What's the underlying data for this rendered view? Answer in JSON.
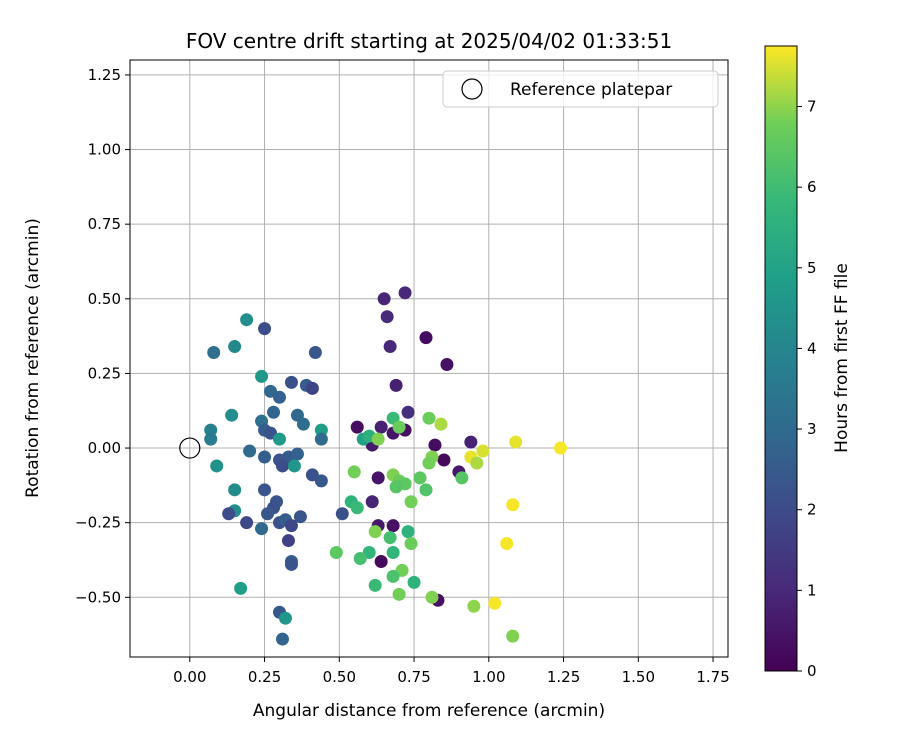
{
  "chart_data": {
    "type": "scatter",
    "title": "FOV centre drift starting at 2025/04/02 01:33:51",
    "xlabel": "Angular distance from reference (arcmin)",
    "ylabel": "Rotation from reference (arcmin)",
    "xlim": [
      -0.2,
      1.8
    ],
    "ylim": [
      -0.7,
      1.3
    ],
    "xticks": [
      0.0,
      0.25,
      0.5,
      0.75,
      1.0,
      1.25,
      1.5,
      1.75
    ],
    "xtick_labels": [
      "0.00",
      "0.25",
      "0.50",
      "0.75",
      "1.00",
      "1.25",
      "1.50",
      "1.75"
    ],
    "yticks": [
      -0.5,
      -0.25,
      0.0,
      0.25,
      0.5,
      0.75,
      1.0,
      1.25
    ],
    "ytick_labels": [
      "−0.50",
      "−0.25",
      "0.00",
      "0.25",
      "0.50",
      "0.75",
      "1.00",
      "1.25"
    ],
    "grid": true,
    "legend": {
      "placement": "upper-right",
      "entries": [
        "Reference platepar"
      ]
    },
    "reference_point": {
      "x": 0.0,
      "y": 0.0,
      "label": "Reference platepar"
    },
    "colorbar": {
      "label": "Hours from first FF file",
      "range": [
        0,
        7.75
      ],
      "ticks": [
        0,
        1,
        2,
        3,
        4,
        5,
        6,
        7
      ],
      "tick_labels": [
        "0",
        "1",
        "2",
        "3",
        "4",
        "5",
        "6",
        "7"
      ],
      "colormap": "viridis"
    },
    "points": [
      {
        "x": 0.65,
        "y": 0.5,
        "c": 0.9
      },
      {
        "x": 0.72,
        "y": 0.52,
        "c": 1.0
      },
      {
        "x": 0.66,
        "y": 0.44,
        "c": 1.1
      },
      {
        "x": 0.67,
        "y": 0.34,
        "c": 1.0
      },
      {
        "x": 0.79,
        "y": 0.37,
        "c": 0.3
      },
      {
        "x": 0.86,
        "y": 0.28,
        "c": 0.4
      },
      {
        "x": 0.69,
        "y": 0.21,
        "c": 0.8
      },
      {
        "x": 0.73,
        "y": 0.12,
        "c": 1.2
      },
      {
        "x": 0.56,
        "y": 0.07,
        "c": 0.3
      },
      {
        "x": 0.64,
        "y": 0.07,
        "c": 0.8
      },
      {
        "x": 0.68,
        "y": 0.05,
        "c": 0.5
      },
      {
        "x": 0.72,
        "y": 0.06,
        "c": 0.4
      },
      {
        "x": 0.61,
        "y": 0.01,
        "c": 0.6
      },
      {
        "x": 0.82,
        "y": 0.01,
        "c": 0.3
      },
      {
        "x": 0.94,
        "y": 0.02,
        "c": 0.8
      },
      {
        "x": 0.85,
        "y": -0.04,
        "c": 0.2
      },
      {
        "x": 0.9,
        "y": -0.08,
        "c": 0.6
      },
      {
        "x": 0.63,
        "y": -0.1,
        "c": 0.5
      },
      {
        "x": 0.61,
        "y": -0.18,
        "c": 0.9
      },
      {
        "x": 0.63,
        "y": -0.26,
        "c": 0.6
      },
      {
        "x": 0.68,
        "y": -0.26,
        "c": 0.4
      },
      {
        "x": 0.64,
        "y": -0.38,
        "c": 0.2
      },
      {
        "x": 0.83,
        "y": -0.51,
        "c": 0.4
      },
      {
        "x": 0.19,
        "y": 0.43,
        "c": 4.3
      },
      {
        "x": 0.25,
        "y": 0.4,
        "c": 2.1
      },
      {
        "x": 0.08,
        "y": 0.32,
        "c": 3.2
      },
      {
        "x": 0.15,
        "y": 0.34,
        "c": 4.1
      },
      {
        "x": 0.42,
        "y": 0.32,
        "c": 2.4
      },
      {
        "x": 0.24,
        "y": 0.24,
        "c": 4.6
      },
      {
        "x": 0.34,
        "y": 0.22,
        "c": 2.2
      },
      {
        "x": 0.39,
        "y": 0.21,
        "c": 2.5
      },
      {
        "x": 0.41,
        "y": 0.2,
        "c": 1.8
      },
      {
        "x": 0.27,
        "y": 0.19,
        "c": 2.9
      },
      {
        "x": 0.3,
        "y": 0.17,
        "c": 2.7
      },
      {
        "x": 0.14,
        "y": 0.11,
        "c": 4.3
      },
      {
        "x": 0.28,
        "y": 0.12,
        "c": 2.8
      },
      {
        "x": 0.36,
        "y": 0.11,
        "c": 2.9
      },
      {
        "x": 0.24,
        "y": 0.09,
        "c": 3.2
      },
      {
        "x": 0.38,
        "y": 0.08,
        "c": 3.1
      },
      {
        "x": 0.07,
        "y": 0.06,
        "c": 3.8
      },
      {
        "x": 0.07,
        "y": 0.03,
        "c": 3.6
      },
      {
        "x": 0.25,
        "y": 0.06,
        "c": 2.6
      },
      {
        "x": 0.27,
        "y": 0.05,
        "c": 2.3
      },
      {
        "x": 0.44,
        "y": 0.06,
        "c": 4.8
      },
      {
        "x": 0.3,
        "y": 0.03,
        "c": 4.7
      },
      {
        "x": 0.44,
        "y": 0.03,
        "c": 3.0
      },
      {
        "x": 0.2,
        "y": -0.01,
        "c": 3.0
      },
      {
        "x": 0.25,
        "y": -0.03,
        "c": 2.6
      },
      {
        "x": 0.33,
        "y": -0.03,
        "c": 2.5
      },
      {
        "x": 0.36,
        "y": -0.02,
        "c": 2.7
      },
      {
        "x": 0.3,
        "y": -0.04,
        "c": 2.3
      },
      {
        "x": 0.31,
        "y": -0.06,
        "c": 2.1
      },
      {
        "x": 0.35,
        "y": -0.06,
        "c": 4.6
      },
      {
        "x": 0.09,
        "y": -0.06,
        "c": 4.4
      },
      {
        "x": 0.41,
        "y": -0.09,
        "c": 2.2
      },
      {
        "x": 0.44,
        "y": -0.11,
        "c": 2.4
      },
      {
        "x": 0.15,
        "y": -0.14,
        "c": 4.2
      },
      {
        "x": 0.25,
        "y": -0.14,
        "c": 2.3
      },
      {
        "x": 0.29,
        "y": -0.18,
        "c": 2.3
      },
      {
        "x": 0.28,
        "y": -0.2,
        "c": 2.2
      },
      {
        "x": 0.15,
        "y": -0.21,
        "c": 4.3
      },
      {
        "x": 0.13,
        "y": -0.22,
        "c": 2.0
      },
      {
        "x": 0.26,
        "y": -0.22,
        "c": 2.4
      },
      {
        "x": 0.37,
        "y": -0.23,
        "c": 2.3
      },
      {
        "x": 0.51,
        "y": -0.22,
        "c": 2.2
      },
      {
        "x": 0.19,
        "y": -0.25,
        "c": 1.9
      },
      {
        "x": 0.3,
        "y": -0.25,
        "c": 2.2
      },
      {
        "x": 0.32,
        "y": -0.24,
        "c": 2.6
      },
      {
        "x": 0.24,
        "y": -0.27,
        "c": 2.9
      },
      {
        "x": 0.34,
        "y": -0.26,
        "c": 1.9
      },
      {
        "x": 0.33,
        "y": -0.31,
        "c": 1.7
      },
      {
        "x": 0.34,
        "y": -0.38,
        "c": 2.6
      },
      {
        "x": 0.34,
        "y": -0.39,
        "c": 2.3
      },
      {
        "x": 0.17,
        "y": -0.47,
        "c": 4.9
      },
      {
        "x": 0.3,
        "y": -0.55,
        "c": 2.4
      },
      {
        "x": 0.32,
        "y": -0.57,
        "c": 4.6
      },
      {
        "x": 0.31,
        "y": -0.64,
        "c": 2.8
      },
      {
        "x": 0.58,
        "y": 0.03,
        "c": 5.0
      },
      {
        "x": 0.6,
        "y": 0.04,
        "c": 5.5
      },
      {
        "x": 0.68,
        "y": 0.1,
        "c": 5.9
      },
      {
        "x": 0.7,
        "y": 0.07,
        "c": 6.7
      },
      {
        "x": 0.63,
        "y": 0.03,
        "c": 6.9
      },
      {
        "x": 0.8,
        "y": 0.1,
        "c": 6.7
      },
      {
        "x": 0.84,
        "y": 0.08,
        "c": 7.2
      },
      {
        "x": 0.55,
        "y": -0.08,
        "c": 6.8
      },
      {
        "x": 0.81,
        "y": -0.03,
        "c": 6.9
      },
      {
        "x": 0.8,
        "y": -0.05,
        "c": 6.8
      },
      {
        "x": 0.77,
        "y": -0.1,
        "c": 6.5
      },
      {
        "x": 0.68,
        "y": -0.09,
        "c": 6.9
      },
      {
        "x": 0.7,
        "y": -0.11,
        "c": 6.7
      },
      {
        "x": 0.72,
        "y": -0.12,
        "c": 6.5
      },
      {
        "x": 0.69,
        "y": -0.13,
        "c": 6.4
      },
      {
        "x": 0.79,
        "y": -0.14,
        "c": 6.3
      },
      {
        "x": 0.91,
        "y": -0.1,
        "c": 6.4
      },
      {
        "x": 0.54,
        "y": -0.18,
        "c": 5.6
      },
      {
        "x": 0.56,
        "y": -0.2,
        "c": 5.9
      },
      {
        "x": 0.74,
        "y": -0.18,
        "c": 6.8
      },
      {
        "x": 0.62,
        "y": -0.28,
        "c": 6.9
      },
      {
        "x": 0.73,
        "y": -0.28,
        "c": 5.6
      },
      {
        "x": 0.67,
        "y": -0.3,
        "c": 6.1
      },
      {
        "x": 0.74,
        "y": -0.32,
        "c": 6.7
      },
      {
        "x": 0.49,
        "y": -0.35,
        "c": 6.5
      },
      {
        "x": 0.6,
        "y": -0.35,
        "c": 5.7
      },
      {
        "x": 0.68,
        "y": -0.35,
        "c": 5.7
      },
      {
        "x": 0.57,
        "y": -0.37,
        "c": 6.1
      },
      {
        "x": 0.71,
        "y": -0.41,
        "c": 6.8
      },
      {
        "x": 0.68,
        "y": -0.43,
        "c": 6.2
      },
      {
        "x": 0.62,
        "y": -0.46,
        "c": 5.9
      },
      {
        "x": 0.75,
        "y": -0.45,
        "c": 5.6
      },
      {
        "x": 0.7,
        "y": -0.49,
        "c": 6.8
      },
      {
        "x": 0.81,
        "y": -0.5,
        "c": 6.9
      },
      {
        "x": 0.95,
        "y": -0.53,
        "c": 7.0
      },
      {
        "x": 1.08,
        "y": -0.63,
        "c": 6.9
      },
      {
        "x": 0.94,
        "y": -0.03,
        "c": 7.6
      },
      {
        "x": 0.96,
        "y": -0.05,
        "c": 7.2
      },
      {
        "x": 0.98,
        "y": -0.01,
        "c": 7.5
      },
      {
        "x": 1.09,
        "y": 0.02,
        "c": 7.6
      },
      {
        "x": 1.24,
        "y": 0.0,
        "c": 7.7
      },
      {
        "x": 1.08,
        "y": -0.19,
        "c": 7.7
      },
      {
        "x": 1.06,
        "y": -0.32,
        "c": 7.7
      },
      {
        "x": 1.02,
        "y": -0.52,
        "c": 7.7
      }
    ]
  }
}
